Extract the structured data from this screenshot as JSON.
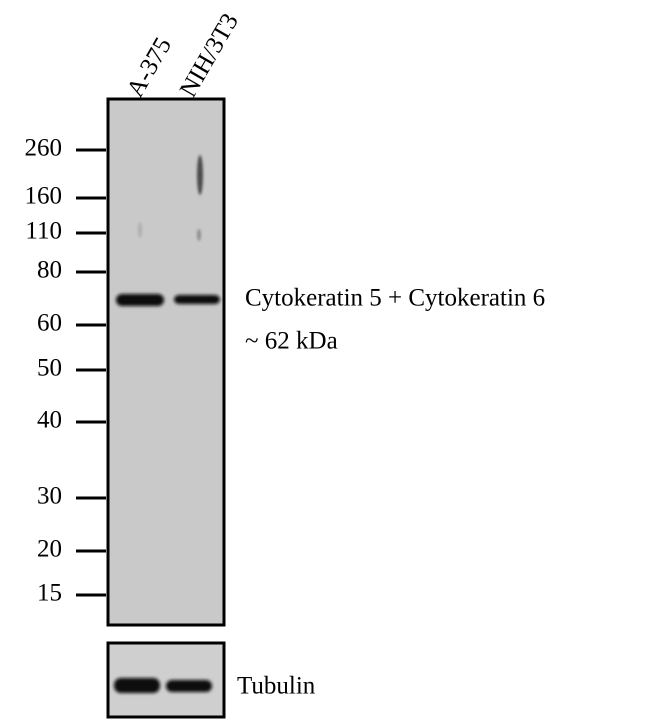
{
  "lanes": [
    "A-375",
    "NIH/3T3"
  ],
  "markers": [
    "260",
    "160",
    "110",
    "80",
    "60",
    "50",
    "40",
    "30",
    "20",
    "15"
  ],
  "band_label": {
    "line1": "Cytokeratin 5 + Cytokeratin 6",
    "line2": "~ 62 kDa"
  },
  "loading_control": "Tubulin"
}
